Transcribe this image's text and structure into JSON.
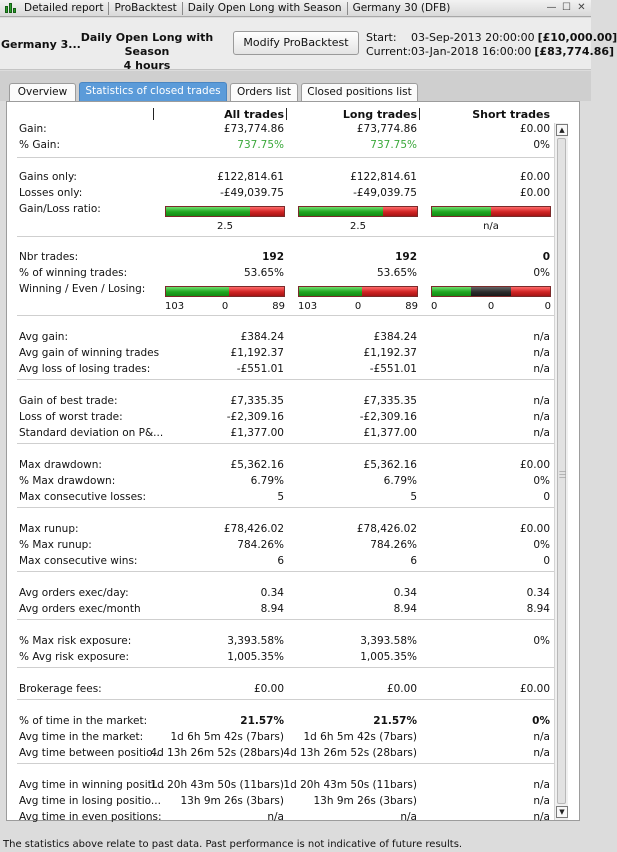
{
  "titlebar": {
    "segments": [
      "Detailed report",
      "ProBacktest",
      "Daily Open Long with Season",
      "Germany 30 (DFB)"
    ],
    "controls": [
      "—",
      "☐",
      "✕"
    ]
  },
  "header": {
    "instrument": "Germany 3...",
    "strategy_line1": "Daily Open Long with Season",
    "strategy_line2": "4 hours",
    "modify_button": "Modify ProBacktest",
    "start_label": "Start:",
    "start_value": "03-Sep-2013 20:00:00",
    "start_capital": "[£10,000.00]",
    "current_label": "Current:",
    "current_value": "03-Jan-2018 16:00:00",
    "current_capital": "[£83,774.86]"
  },
  "tabs": [
    "Overview",
    "Statistics of closed trades",
    "Orders list",
    "Closed positions list"
  ],
  "columns": [
    "All trades",
    "Long trades",
    "Short trades"
  ],
  "stats": {
    "gain": [
      "Gain:",
      "£73,774.86",
      "£73,774.86",
      "£0.00"
    ],
    "pct_gain": [
      "% Gain:",
      "737.75%",
      "737.75%",
      "0%"
    ],
    "gains_only": [
      "Gains only:",
      "£122,814.61",
      "£122,814.61",
      "£0.00"
    ],
    "losses_only": [
      "Losses only:",
      "-£49,039.75",
      "-£49,039.75",
      "£0.00"
    ],
    "gl_ratio_label": "Gain/Loss ratio:",
    "gl_ratio_values": [
      "2.5",
      "2.5",
      "n/a"
    ],
    "nbr_trades": [
      "Nbr trades:",
      "192",
      "192",
      "0"
    ],
    "pct_winning": [
      "% of winning trades:",
      "53.65%",
      "53.65%",
      "0%"
    ],
    "wel_label": "Winning / Even / Losing:",
    "wel_all": [
      "103",
      "0",
      "89"
    ],
    "wel_long": [
      "103",
      "0",
      "89"
    ],
    "wel_short": [
      "0",
      "0",
      "0"
    ],
    "avg_gain": [
      "Avg gain:",
      "£384.24",
      "£384.24",
      "n/a"
    ],
    "avg_gain_winning": [
      "Avg gain of winning trades",
      "£1,192.37",
      "£1,192.37",
      "n/a"
    ],
    "avg_loss_losing": [
      "Avg loss of losing trades:",
      "-£551.01",
      "-£551.01",
      "n/a"
    ],
    "best_trade": [
      "Gain of best trade:",
      "£7,335.35",
      "£7,335.35",
      "n/a"
    ],
    "worst_trade": [
      "Loss of worst trade:",
      "-£2,309.16",
      "-£2,309.16",
      "n/a"
    ],
    "std_dev": [
      "Standard deviation on P&...",
      "£1,377.00",
      "£1,377.00",
      "n/a"
    ],
    "max_dd": [
      "Max drawdown:",
      "£5,362.16",
      "£5,362.16",
      "£0.00"
    ],
    "pct_max_dd": [
      "% Max drawdown:",
      "6.79%",
      "6.79%",
      "0%"
    ],
    "max_consec_losses": [
      "Max consecutive losses:",
      "5",
      "5",
      "0"
    ],
    "max_runup": [
      "Max runup:",
      "£78,426.02",
      "£78,426.02",
      "£0.00"
    ],
    "pct_max_runup": [
      "% Max runup:",
      "784.26%",
      "784.26%",
      "0%"
    ],
    "max_consec_wins": [
      "Max consecutive wins:",
      "6",
      "6",
      "0"
    ],
    "orders_day": [
      "Avg orders exec/day:",
      "0.34",
      "0.34",
      "0.34"
    ],
    "orders_month": [
      "Avg orders exec/month",
      "8.94",
      "8.94",
      "8.94"
    ],
    "max_risk": [
      "% Max risk exposure:",
      "3,393.58%",
      "3,393.58%",
      "0%"
    ],
    "avg_risk": [
      "% Avg risk exposure:",
      "1,005.35%",
      "1,005.35%",
      ""
    ],
    "brokerage": [
      "Brokerage fees:",
      "£0.00",
      "£0.00",
      "£0.00"
    ],
    "time_pct": [
      "% of time in the market:",
      "21.57%",
      "21.57%",
      "0%"
    ],
    "time_avg": [
      "Avg time in the market:",
      "1d 6h 5m 42s (7bars)",
      "1d 6h 5m 42s (7bars)",
      "n/a"
    ],
    "time_between": [
      "Avg time between positio...",
      "4d 13h 26m 52s (28bars)",
      "4d 13h 26m 52s (28bars)",
      "n/a"
    ],
    "time_winning": [
      "Avg time in winning positi...",
      "1d 20h 43m 50s (11bars)",
      "1d 20h 43m 50s (11bars)",
      "n/a"
    ],
    "time_losing": [
      "Avg time in losing positio...",
      "13h 9m 26s (3bars)",
      "13h 9m 26s (3bars)",
      "n/a"
    ],
    "time_even": [
      "Avg time in even positions:",
      "n/a",
      "n/a",
      "n/a"
    ]
  },
  "ratios": {
    "gl_all": 0.71,
    "gl_long": 0.71,
    "gl_short": 0.5,
    "wel_all": [
      103,
      0,
      89
    ],
    "wel_long": [
      103,
      0,
      89
    ],
    "wel_short": [
      1,
      1,
      1
    ]
  },
  "footer": "The statistics above relate to past data. Past performance is not indicative of future results."
}
